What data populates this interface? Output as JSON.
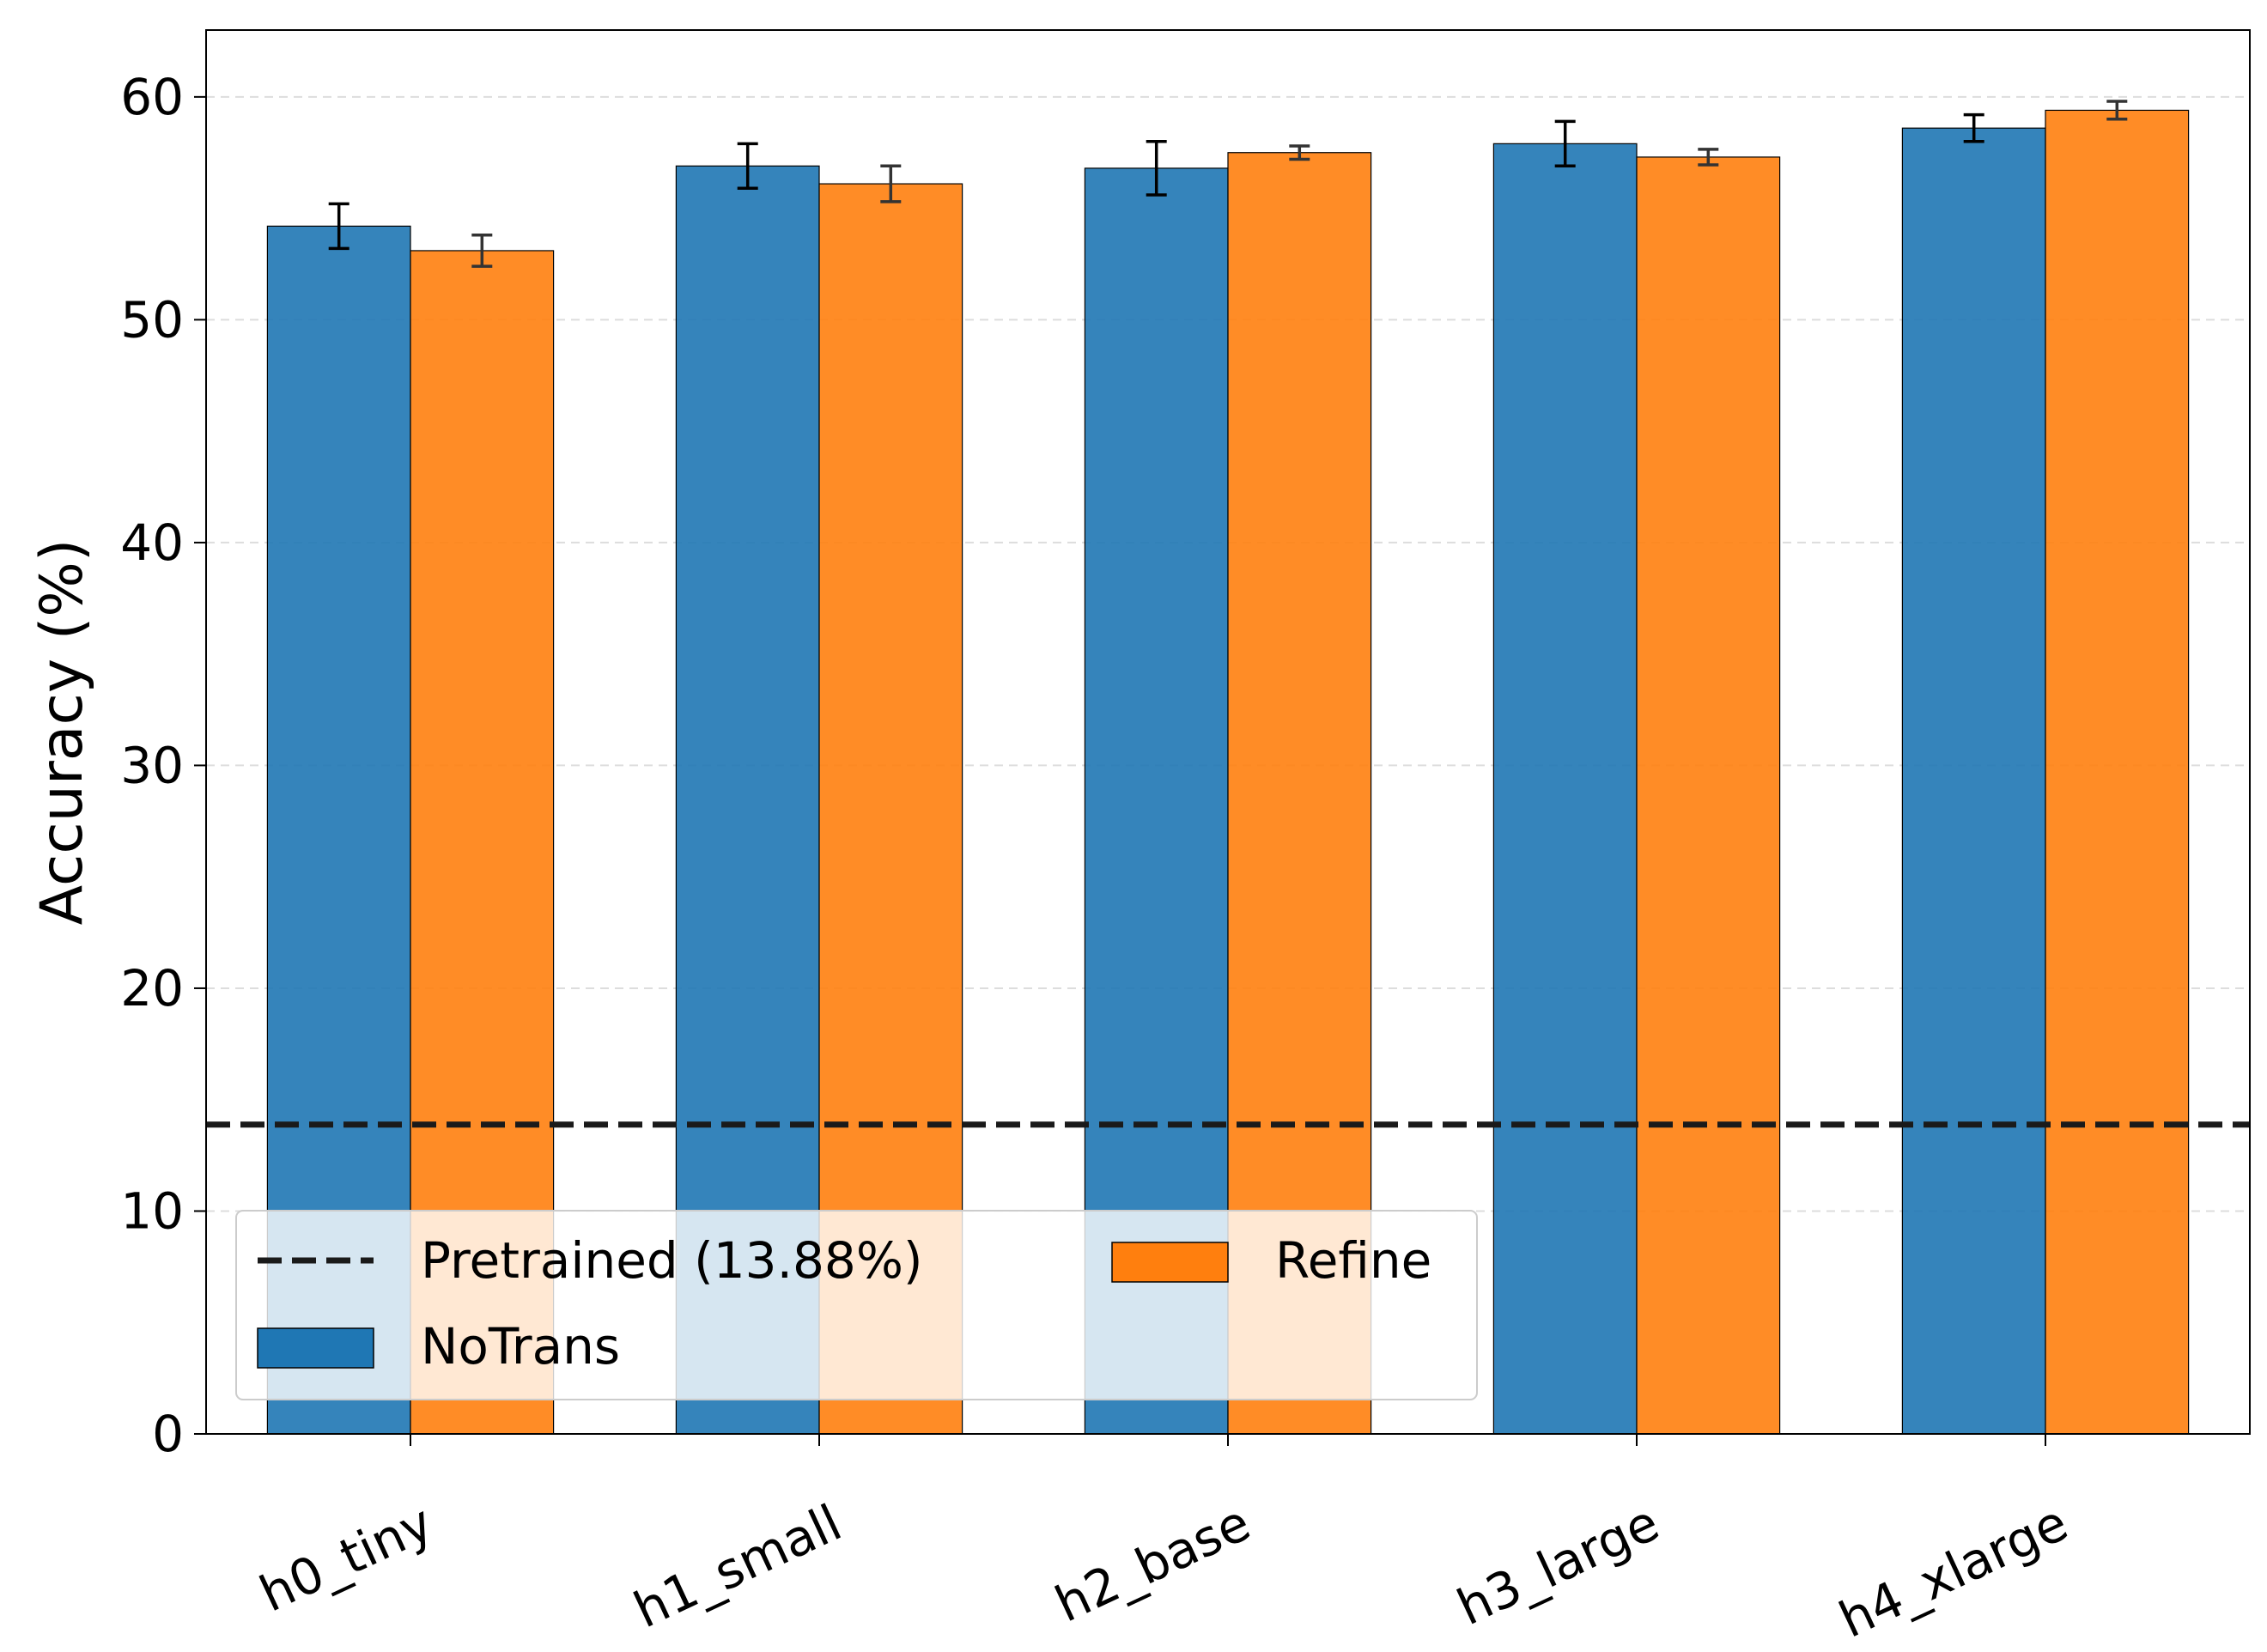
{
  "chart_data": {
    "type": "bar",
    "title": "",
    "xlabel": "",
    "ylabel": "Accuracy (%)",
    "ylim": [
      0,
      63
    ],
    "yticks": [
      0,
      10,
      20,
      30,
      40,
      50,
      60
    ],
    "categories": [
      "h0_tiny",
      "h1_small",
      "h2_base",
      "h3_large",
      "h4_xlarge"
    ],
    "series": [
      {
        "name": "NoTrans",
        "color": "#1f77b4",
        "values": [
          54.2,
          56.9,
          56.8,
          57.9,
          58.6
        ],
        "errors": [
          1.0,
          1.0,
          1.2,
          1.0,
          0.6
        ],
        "error_color": "#000000"
      },
      {
        "name": "Refine",
        "color": "#ff7f0e",
        "values": [
          53.1,
          56.1,
          57.5,
          57.3,
          59.4
        ],
        "errors": [
          0.7,
          0.8,
          0.3,
          0.35,
          0.4
        ],
        "error_color": "#333333"
      }
    ],
    "reference_line": {
      "label": "Pretrained (13.88%)",
      "value": 13.88,
      "style": "dashed",
      "color": "#1a1a1a"
    },
    "grid": "y-dashed",
    "legend_placement": "lower-left",
    "legend_columns": 2,
    "tick_label_rotation": 25
  }
}
